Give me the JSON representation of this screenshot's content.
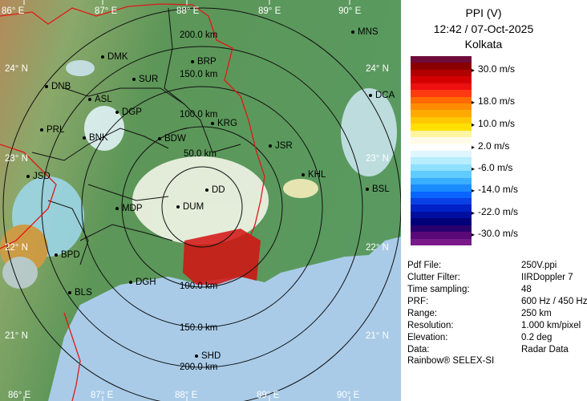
{
  "title": {
    "product": "PPI (V)",
    "datetime": "12:42 / 07-Oct-2025",
    "station": "Kolkata"
  },
  "legend": {
    "ticks": [
      "30.0 m/s",
      "18.0 m/s",
      "10.0 m/s",
      "2.0 m/s",
      "-6.0 m/s",
      "-14.0 m/s",
      "-22.0 m/s",
      "-30.0 m/s"
    ],
    "colors": [
      "#6e0c3c",
      "#8a0000",
      "#b00000",
      "#d40000",
      "#ee1010",
      "#ff3a10",
      "#ff6a00",
      "#ff8c00",
      "#ffaa00",
      "#ffc800",
      "#ffe000",
      "#fff5a0",
      "#fffbe8",
      "#ffffff",
      "#dff6ff",
      "#b8ecff",
      "#8fdfff",
      "#5fcbff",
      "#3aaeff",
      "#1a8cff",
      "#0a64ff",
      "#0a40e6",
      "#0020c8",
      "#000ea0",
      "#000078",
      "#2a006e",
      "#5a0a78",
      "#7a1a8a"
    ]
  },
  "info": [
    {
      "key": "Pdf File:",
      "value": "250V.ppi"
    },
    {
      "key": "Clutter Filter:",
      "value": "IIRDoppler 7"
    },
    {
      "key": "Time sampling:",
      "value": "48"
    },
    {
      "key": "PRF:",
      "value": "600 Hz / 450 Hz"
    },
    {
      "key": "Range:",
      "value": "250 km"
    },
    {
      "key": "Resolution:",
      "value": "1.000 km/pixel"
    },
    {
      "key": "Elevation:",
      "value": "0.2 deg"
    },
    {
      "key": "Data:",
      "value": "Radar Data"
    }
  ],
  "footer": "Rainbow® SELEX-SI",
  "map": {
    "lon_labels": [
      "86° E",
      "87° E",
      "88° E",
      "89° E",
      "90° E"
    ],
    "lat_labels": [
      "24° N",
      "23° N",
      "22° N",
      "21° N"
    ],
    "range_labels": [
      "50.0 km",
      "100.0 km",
      "150.0 km",
      "200.0 km",
      "150.0 km",
      "200.0 km",
      "100.0 km"
    ],
    "stations": [
      "MNS",
      "DMK",
      "BRP",
      "DNB",
      "SUR",
      "DCA",
      "ASL",
      "DGP",
      "KRG",
      "PRL",
      "BNK",
      "BDW",
      "JSR",
      "JSD",
      "KHL",
      "BSL",
      "MDP",
      "DD",
      "DUM",
      "BPD",
      "DGH",
      "BLS",
      "SHD"
    ]
  },
  "colors": {
    "land": "#5d9a5a",
    "sea": "#a9cbe8",
    "border": "#e01818",
    "district": "#111111",
    "ring": "#111111"
  }
}
